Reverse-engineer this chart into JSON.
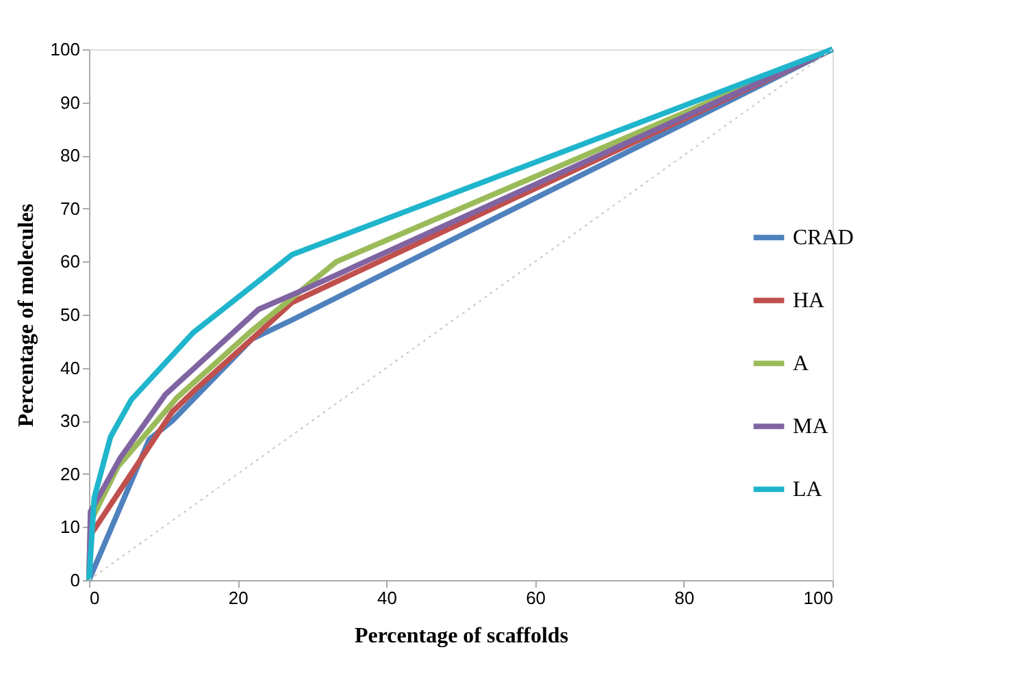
{
  "chart_data": {
    "type": "line",
    "xlabel": "Percentage of scaffolds",
    "ylabel": "Percentage of molecules",
    "xlim": [
      0,
      100
    ],
    "ylim": [
      0,
      100
    ],
    "xticks": [
      0,
      20,
      40,
      60,
      80,
      100
    ],
    "yticks": [
      0,
      10,
      20,
      30,
      40,
      50,
      60,
      70,
      80,
      90,
      100
    ],
    "grid": false,
    "legend": "right",
    "marker": "none",
    "line_style": "solid",
    "series": [
      {
        "name": "CRAD",
        "color": "#4f81bd",
        "x": [
          0,
          8.1,
          11.2,
          21.9,
          27.3,
          100
        ],
        "values": [
          0,
          26.5,
          30,
          45.4,
          49,
          100
        ]
      },
      {
        "name": "HA",
        "color": "#c0504d",
        "x": [
          0,
          0.2,
          11.2,
          14.4,
          21.9,
          27.3,
          100
        ],
        "values": [
          0,
          8.5,
          31.7,
          36,
          45.4,
          52.3,
          100
        ]
      },
      {
        "name": "A",
        "color": "#9bbb59",
        "x": [
          0,
          0.2,
          3.9,
          11.8,
          21.9,
          33.3,
          100
        ],
        "values": [
          0,
          11,
          21.4,
          34.3,
          47,
          60,
          100
        ]
      },
      {
        "name": "MA",
        "color": "#8064a2",
        "x": [
          0,
          0.2,
          4.2,
          10.3,
          22.8,
          28.4,
          100
        ],
        "values": [
          0,
          12.9,
          23,
          35,
          51,
          54.4,
          100
        ]
      },
      {
        "name": "LA",
        "color": "#1fb5cc",
        "x": [
          0,
          0.7,
          2.9,
          5.7,
          14,
          27.3,
          100
        ],
        "values": [
          0,
          15.5,
          27,
          34,
          46.6,
          61.3,
          100
        ]
      },
      {
        "type": "line",
        "color": "#c8c8c8",
        "line_style": "dotted",
        "x": [
          0,
          100
        ],
        "values": [
          0,
          100
        ]
      }
    ]
  }
}
